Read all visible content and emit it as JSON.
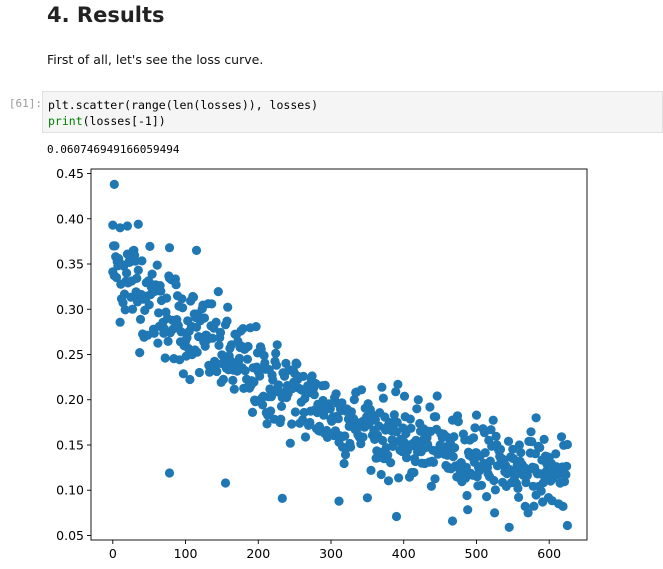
{
  "section_heading": "4. Results",
  "intro_text": "First of all, let's see the loss curve.",
  "cell": {
    "prompt": "[61]:",
    "code_line1": "plt.scatter(range(len(losses)), losses)",
    "code_line2_fn": "print",
    "code_line2_rest": "(losses[-1])",
    "output": "0.060746949166059494"
  },
  "colors": {
    "marker": "#1f77b4",
    "code_bg": "#f5f5f5"
  },
  "chart_data": {
    "type": "scatter",
    "title": "",
    "xlabel": "",
    "ylabel": "",
    "xlim": [
      -30,
      652
    ],
    "ylim": [
      0.045,
      0.455
    ],
    "xticks": [
      0,
      100,
      200,
      300,
      400,
      500,
      600
    ],
    "yticks": [
      0.05,
      0.1,
      0.15,
      0.2,
      0.25,
      0.3,
      0.35,
      0.4,
      0.45
    ],
    "ytick_labels": [
      "0.05",
      "0.10",
      "0.15",
      "0.20",
      "0.25",
      "0.30",
      "0.35",
      "0.40",
      "0.45"
    ],
    "n_points": 626,
    "trend": [
      [
        0,
        0.35
      ],
      [
        100,
        0.28
      ],
      [
        200,
        0.225
      ],
      [
        300,
        0.185
      ],
      [
        400,
        0.155
      ],
      [
        500,
        0.135
      ],
      [
        625,
        0.115
      ]
    ],
    "x_range": [
      0,
      625
    ],
    "scatter_spread": 0.028,
    "outliers": [
      {
        "x": 2,
        "y": 0.438
      },
      {
        "x": 0,
        "y": 0.393
      },
      {
        "x": 10,
        "y": 0.39
      },
      {
        "x": 20,
        "y": 0.392
      },
      {
        "x": 35,
        "y": 0.394
      },
      {
        "x": 78,
        "y": 0.368
      },
      {
        "x": 115,
        "y": 0.365
      },
      {
        "x": 78,
        "y": 0.119
      },
      {
        "x": 155,
        "y": 0.108
      },
      {
        "x": 233,
        "y": 0.091
      },
      {
        "x": 311,
        "y": 0.088
      },
      {
        "x": 390,
        "y": 0.071
      },
      {
        "x": 467,
        "y": 0.066
      },
      {
        "x": 545,
        "y": 0.059
      },
      {
        "x": 625,
        "y": 0.061
      },
      {
        "x": 420,
        "y": 0.2
      },
      {
        "x": 500,
        "y": 0.183
      },
      {
        "x": 582,
        "y": 0.18
      }
    ]
  }
}
